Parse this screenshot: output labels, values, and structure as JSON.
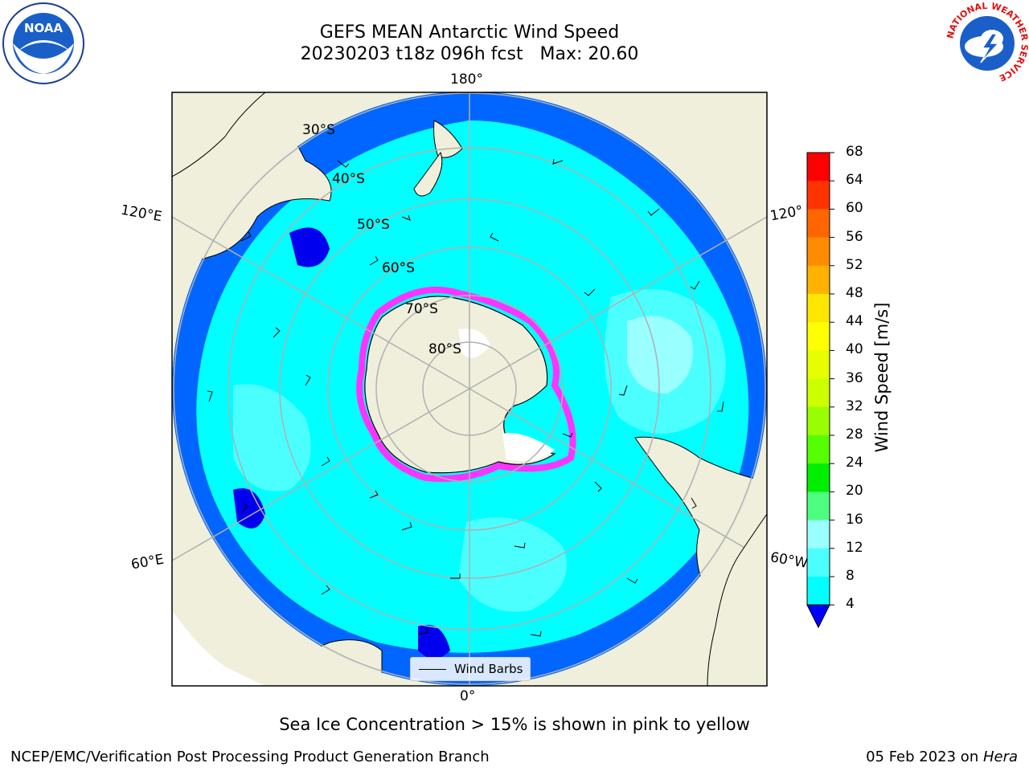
{
  "title": {
    "line1": "GEFS MEAN Antarctic Wind Speed",
    "line2": "20230203 t18z 096h fcst   Max: 20.60"
  },
  "map": {
    "longitude_labels": [
      "180°",
      "120°E",
      "120°",
      "60°E",
      "60°W",
      "0°"
    ],
    "latitude_labels": [
      "30°S",
      "40°S",
      "50°S",
      "60°S",
      "70°S",
      "80°S"
    ],
    "legend_label": "Wind Barbs",
    "colors": {
      "land": "#efefdc",
      "ocean_4": "#0066ff",
      "ocean_8": "#00ffff",
      "ocean_12": "#4cffff",
      "ocean_16": "#99ffff",
      "sea_ice_edge": "#ff33ff"
    }
  },
  "colorbar": {
    "label": "Wind Speed [m/s]",
    "ticks": [
      "68",
      "64",
      "60",
      "56",
      "52",
      "48",
      "44",
      "40",
      "36",
      "32",
      "28",
      "24",
      "20",
      "16",
      "12",
      "8",
      "4"
    ],
    "colors": [
      "#ff0000",
      "#ff3300",
      "#ff6600",
      "#ff8c00",
      "#ffb300",
      "#ffe600",
      "#ffff00",
      "#e6ff00",
      "#ccff00",
      "#99ff00",
      "#55ff00",
      "#00ee00",
      "#4cff7f",
      "#99ffff",
      "#4cffff",
      "#00ffff",
      "#0066ff"
    ],
    "extend_color": "#0000ff"
  },
  "caption": "Sea Ice Concentration > 15% is shown in pink to yellow",
  "footer": {
    "left": "NCEP/EMC/Verification Post Processing Product Generation Branch",
    "date": "05 Feb 2023 on ",
    "host": "Hera"
  },
  "logos": {
    "left": "NOAA",
    "right_ring": "NATIONAL WEATHER SERVICE"
  }
}
